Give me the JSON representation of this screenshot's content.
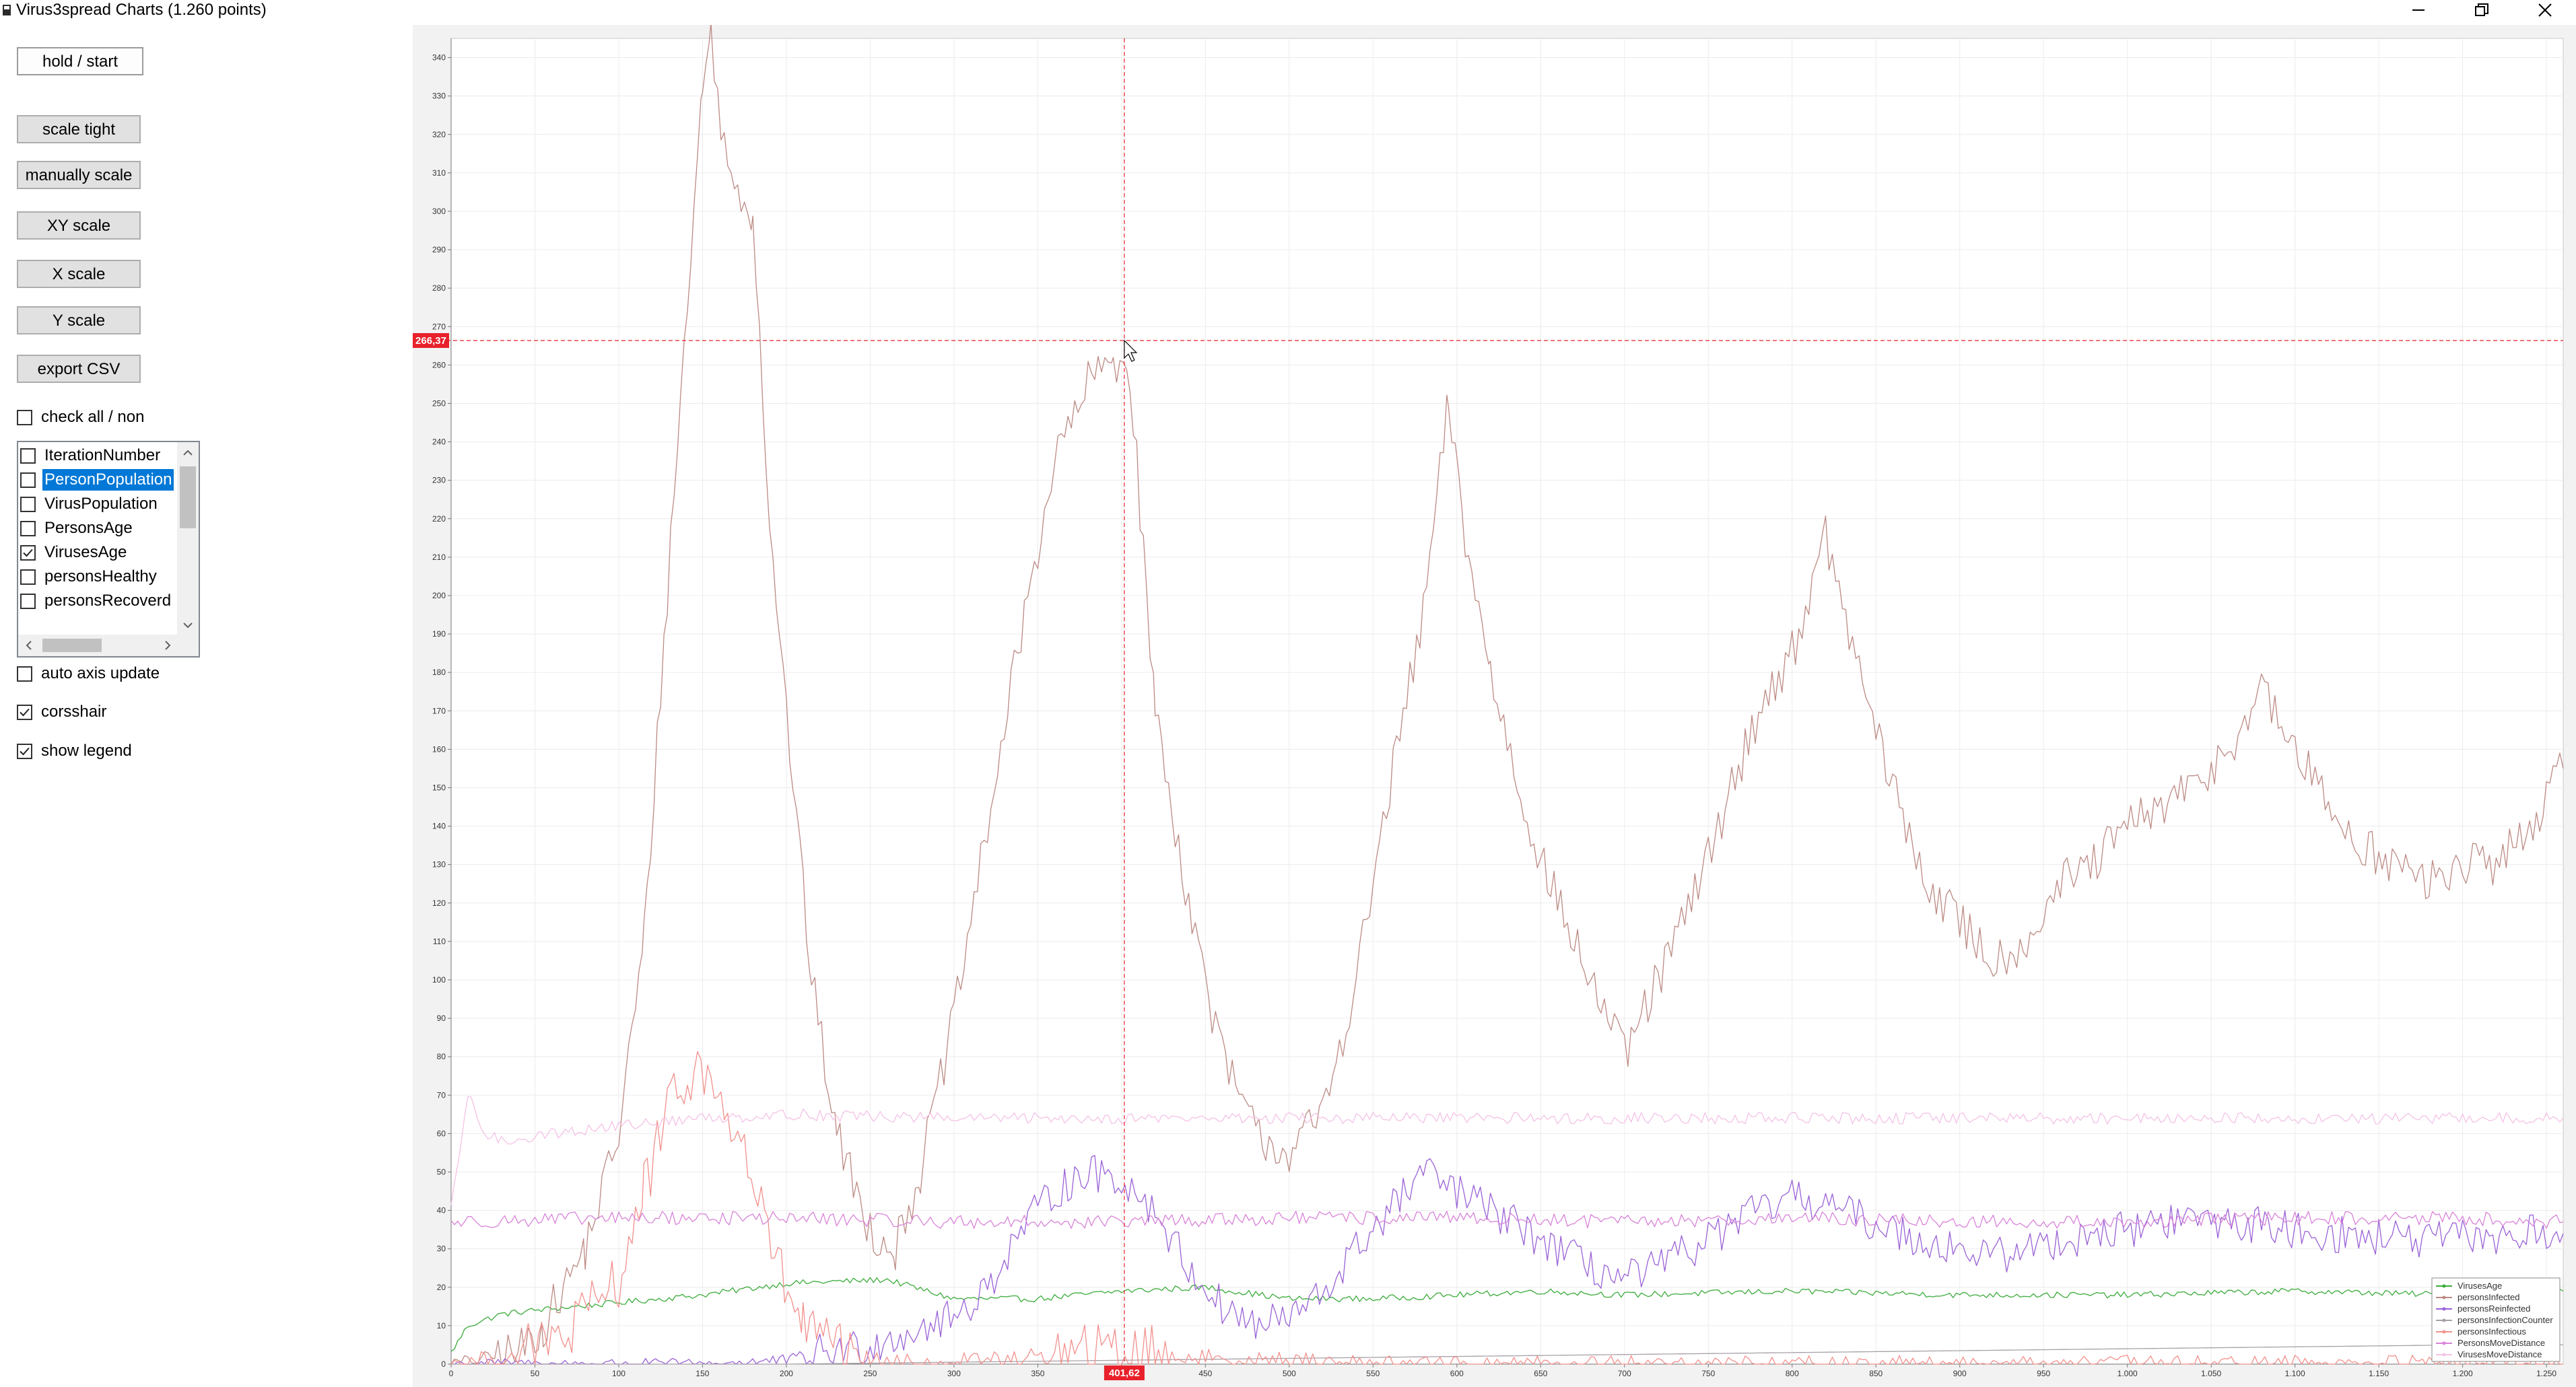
{
  "window": {
    "title": "Virus3spread Charts (1.260 points)",
    "icon": "app-icon",
    "controls": [
      "minimize-icon",
      "restore-icon",
      "close-icon"
    ]
  },
  "controls": {
    "hold_start": "hold / start",
    "scale_tight": "scale tight",
    "manually_scale": "manually scale",
    "xy_scale": "XY scale",
    "x_scale": "X scale",
    "y_scale": "Y scale",
    "export_csv": "export CSV",
    "check_all": {
      "label": "check all / non",
      "checked": false
    },
    "auto_axis_update": {
      "label": "auto axis update",
      "checked": false
    },
    "crosshair": {
      "label": "corsshair",
      "checked": true
    },
    "show_legend": {
      "label": "show legend",
      "checked": true
    }
  },
  "series_list": {
    "items": [
      {
        "label": "IterationNumber",
        "checked": false,
        "selected": false
      },
      {
        "label": "PersonPopulation",
        "checked": false,
        "selected": true
      },
      {
        "label": "VirusPopulation",
        "checked": false,
        "selected": false
      },
      {
        "label": "PersonsAge",
        "checked": false,
        "selected": false
      },
      {
        "label": "VirusesAge",
        "checked": true,
        "selected": false
      },
      {
        "label": "personsHealthy",
        "checked": false,
        "selected": false
      },
      {
        "label": "personsRecoverd",
        "checked": false,
        "selected": false
      }
    ]
  },
  "crosshair": {
    "x_label": "401,62",
    "y_label": "266,37",
    "x": 401.62,
    "y": 266.37,
    "color": "#e8212b"
  },
  "chart_data": {
    "type": "line",
    "xlim": [
      0,
      1260
    ],
    "ylim": [
      0,
      345
    ],
    "grid": true,
    "legend_position": "bottom-right",
    "x_ticks": [
      {
        "value": 0,
        "label": "0"
      },
      {
        "value": 50,
        "label": "50"
      },
      {
        "value": 100,
        "label": "100"
      },
      {
        "value": 150,
        "label": "150"
      },
      {
        "value": 200,
        "label": "200"
      },
      {
        "value": 250,
        "label": "250"
      },
      {
        "value": 300,
        "label": "300"
      },
      {
        "value": 350,
        "label": "350"
      },
      {
        "value": 400,
        "label": "400"
      },
      {
        "value": 450,
        "label": "450"
      },
      {
        "value": 500,
        "label": "500"
      },
      {
        "value": 550,
        "label": "550"
      },
      {
        "value": 600,
        "label": "600"
      },
      {
        "value": 650,
        "label": "650"
      },
      {
        "value": 700,
        "label": "700"
      },
      {
        "value": 750,
        "label": "750"
      },
      {
        "value": 800,
        "label": "800"
      },
      {
        "value": 850,
        "label": "850"
      },
      {
        "value": 900,
        "label": "900"
      },
      {
        "value": 950,
        "label": "950"
      },
      {
        "value": 1000,
        "label": "1.000"
      },
      {
        "value": 1050,
        "label": "1.050"
      },
      {
        "value": 1100,
        "label": "1.100"
      },
      {
        "value": 1150,
        "label": "1.150"
      },
      {
        "value": 1200,
        "label": "1.200"
      },
      {
        "value": 1250,
        "label": "1.250"
      }
    ],
    "y_ticks": [
      0,
      10,
      20,
      30,
      40,
      50,
      60,
      70,
      80,
      90,
      100,
      110,
      120,
      130,
      140,
      150,
      160,
      170,
      180,
      190,
      200,
      210,
      220,
      230,
      240,
      250,
      260,
      270,
      280,
      290,
      300,
      310,
      320,
      330,
      340
    ],
    "series": [
      {
        "name": "VirusesAge",
        "color": "#3bab3b",
        "noise": 0.8,
        "points": [
          [
            0,
            3
          ],
          [
            10,
            10
          ],
          [
            30,
            13
          ],
          [
            50,
            14
          ],
          [
            100,
            16
          ],
          [
            150,
            18
          ],
          [
            200,
            21
          ],
          [
            260,
            22
          ],
          [
            300,
            17
          ],
          [
            350,
            17
          ],
          [
            400,
            19
          ],
          [
            450,
            20
          ],
          [
            500,
            17
          ],
          [
            550,
            17
          ],
          [
            600,
            18
          ],
          [
            650,
            19
          ],
          [
            700,
            18
          ],
          [
            800,
            19
          ],
          [
            900,
            18
          ],
          [
            1000,
            18
          ],
          [
            1100,
            19
          ],
          [
            1200,
            18
          ],
          [
            1260,
            19
          ]
        ]
      },
      {
        "name": "personsInfected",
        "color": "#bc8a84",
        "noise": 6,
        "points": [
          [
            0,
            0
          ],
          [
            40,
            3
          ],
          [
            55,
            10
          ],
          [
            80,
            30
          ],
          [
            100,
            60
          ],
          [
            115,
            110
          ],
          [
            125,
            175
          ],
          [
            135,
            240
          ],
          [
            145,
            300
          ],
          [
            150,
            335
          ],
          [
            155,
            345
          ],
          [
            165,
            310
          ],
          [
            180,
            300
          ],
          [
            190,
            220
          ],
          [
            200,
            170
          ],
          [
            215,
            100
          ],
          [
            230,
            60
          ],
          [
            250,
            35
          ],
          [
            265,
            30
          ],
          [
            280,
            50
          ],
          [
            300,
            90
          ],
          [
            320,
            140
          ],
          [
            340,
            190
          ],
          [
            360,
            235
          ],
          [
            380,
            255
          ],
          [
            395,
            262
          ],
          [
            405,
            258
          ],
          [
            420,
            170
          ],
          [
            440,
            120
          ],
          [
            460,
            80
          ],
          [
            480,
            60
          ],
          [
            500,
            55
          ],
          [
            520,
            65
          ],
          [
            540,
            100
          ],
          [
            560,
            150
          ],
          [
            580,
            195
          ],
          [
            595,
            250
          ],
          [
            605,
            215
          ],
          [
            620,
            180
          ],
          [
            640,
            145
          ],
          [
            660,
            120
          ],
          [
            680,
            100
          ],
          [
            700,
            80
          ],
          [
            720,
            100
          ],
          [
            740,
            120
          ],
          [
            760,
            145
          ],
          [
            780,
            170
          ],
          [
            800,
            185
          ],
          [
            820,
            215
          ],
          [
            840,
            180
          ],
          [
            860,
            150
          ],
          [
            880,
            125
          ],
          [
            900,
            115
          ],
          [
            920,
            105
          ],
          [
            940,
            110
          ],
          [
            960,
            125
          ],
          [
            980,
            130
          ],
          [
            1000,
            140
          ],
          [
            1020,
            145
          ],
          [
            1040,
            150
          ],
          [
            1060,
            160
          ],
          [
            1080,
            175
          ],
          [
            1100,
            160
          ],
          [
            1120,
            145
          ],
          [
            1140,
            135
          ],
          [
            1160,
            130
          ],
          [
            1180,
            125
          ],
          [
            1200,
            130
          ],
          [
            1220,
            130
          ],
          [
            1240,
            140
          ],
          [
            1260,
            155
          ]
        ]
      },
      {
        "name": "personsReinfected",
        "color": "#9a62d6",
        "noise": 5,
        "points": [
          [
            0,
            0
          ],
          [
            150,
            0
          ],
          [
            200,
            1
          ],
          [
            220,
            3
          ],
          [
            250,
            5
          ],
          [
            270,
            8
          ],
          [
            300,
            12
          ],
          [
            320,
            20
          ],
          [
            340,
            35
          ],
          [
            360,
            45
          ],
          [
            380,
            50
          ],
          [
            400,
            48
          ],
          [
            420,
            40
          ],
          [
            440,
            25
          ],
          [
            460,
            15
          ],
          [
            480,
            10
          ],
          [
            500,
            12
          ],
          [
            520,
            18
          ],
          [
            540,
            30
          ],
          [
            560,
            40
          ],
          [
            580,
            50
          ],
          [
            600,
            45
          ],
          [
            620,
            40
          ],
          [
            640,
            35
          ],
          [
            660,
            30
          ],
          [
            680,
            25
          ],
          [
            700,
            22
          ],
          [
            720,
            25
          ],
          [
            740,
            30
          ],
          [
            760,
            35
          ],
          [
            780,
            40
          ],
          [
            800,
            43
          ],
          [
            820,
            42
          ],
          [
            840,
            38
          ],
          [
            860,
            35
          ],
          [
            880,
            32
          ],
          [
            900,
            30
          ],
          [
            920,
            28
          ],
          [
            940,
            30
          ],
          [
            960,
            32
          ],
          [
            980,
            34
          ],
          [
            1000,
            35
          ],
          [
            1020,
            37
          ],
          [
            1040,
            38
          ],
          [
            1060,
            37
          ],
          [
            1080,
            36
          ],
          [
            1100,
            35
          ],
          [
            1120,
            34
          ],
          [
            1140,
            33
          ],
          [
            1160,
            33
          ],
          [
            1180,
            32
          ],
          [
            1200,
            33
          ],
          [
            1220,
            33
          ],
          [
            1240,
            34
          ],
          [
            1260,
            34
          ]
        ]
      },
      {
        "name": "personsInfectionCounter",
        "color": "#a8a0a8",
        "noise": 0,
        "points": [
          [
            0,
            0
          ],
          [
            200,
            0
          ],
          [
            400,
            1
          ],
          [
            600,
            2
          ],
          [
            800,
            3
          ],
          [
            1000,
            4
          ],
          [
            1200,
            5
          ],
          [
            1260,
            5
          ]
        ]
      },
      {
        "name": "personsInfectious",
        "color": "#f2908c",
        "noise": 8,
        "points": [
          [
            0,
            0
          ],
          [
            40,
            2
          ],
          [
            60,
            5
          ],
          [
            80,
            12
          ],
          [
            100,
            22
          ],
          [
            115,
            45
          ],
          [
            125,
            60
          ],
          [
            135,
            70
          ],
          [
            145,
            78
          ],
          [
            155,
            72
          ],
          [
            165,
            65
          ],
          [
            175,
            55
          ],
          [
            185,
            40
          ],
          [
            195,
            25
          ],
          [
            210,
            10
          ],
          [
            230,
            3
          ],
          [
            260,
            0
          ],
          [
            320,
            1
          ],
          [
            360,
            2
          ],
          [
            400,
            3
          ],
          [
            430,
            2
          ],
          [
            480,
            1
          ],
          [
            560,
            0
          ],
          [
            1260,
            0
          ]
        ]
      },
      {
        "name": "PersonsMoveDistance",
        "color": "#d883d8",
        "noise": 1.8,
        "points": [
          [
            0,
            37
          ],
          [
            100,
            38
          ],
          [
            200,
            38
          ],
          [
            300,
            37
          ],
          [
            400,
            37
          ],
          [
            500,
            38
          ],
          [
            600,
            38
          ],
          [
            700,
            37
          ],
          [
            800,
            38
          ],
          [
            900,
            37
          ],
          [
            1000,
            37
          ],
          [
            1100,
            38
          ],
          [
            1200,
            38
          ],
          [
            1260,
            37
          ]
        ]
      },
      {
        "name": "VirusesMoveDistance",
        "color": "#f4c2e6",
        "noise": 1.5,
        "points": [
          [
            0,
            40
          ],
          [
            10,
            70
          ],
          [
            20,
            60
          ],
          [
            30,
            58
          ],
          [
            60,
            60
          ],
          [
            100,
            62
          ],
          [
            150,
            64
          ],
          [
            200,
            65
          ],
          [
            300,
            64
          ],
          [
            400,
            64
          ],
          [
            500,
            64
          ],
          [
            600,
            64
          ],
          [
            700,
            64
          ],
          [
            800,
            64
          ],
          [
            900,
            64
          ],
          [
            1000,
            64
          ],
          [
            1100,
            64
          ],
          [
            1200,
            64
          ],
          [
            1260,
            64
          ]
        ]
      }
    ]
  }
}
